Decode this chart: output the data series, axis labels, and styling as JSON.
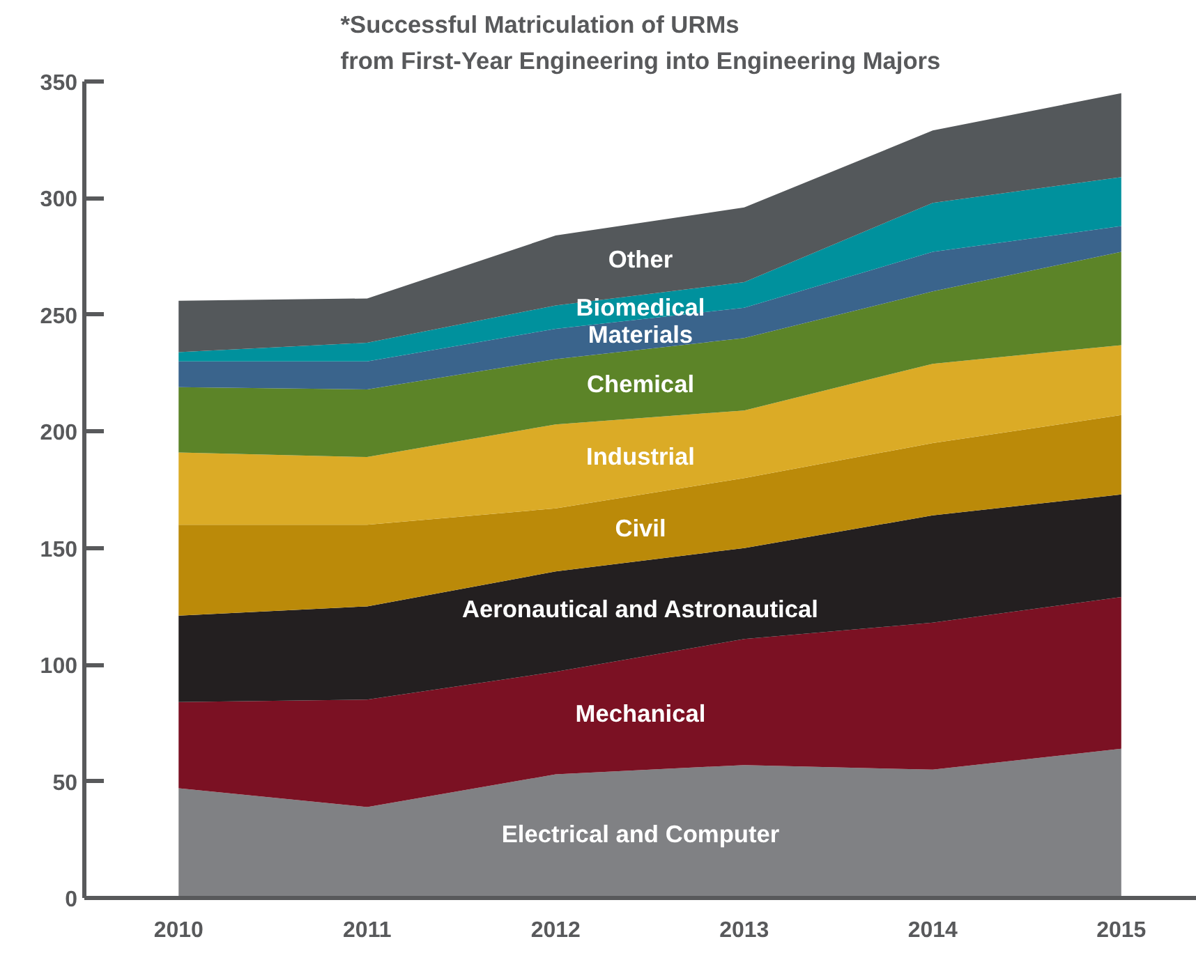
{
  "chart_data": {
    "type": "area",
    "stacked": true,
    "title": "*Successful Matriculation of URMs\nfrom First-Year Engineering into Engineering Majors",
    "x": [
      2010,
      2011,
      2012,
      2013,
      2014,
      2015
    ],
    "xlim": [
      2009.5,
      2015.4
    ],
    "xticks": [
      2010,
      2011,
      2012,
      2013,
      2014,
      2015
    ],
    "ylim": [
      0,
      350
    ],
    "yticks": [
      0,
      50,
      100,
      150,
      200,
      250,
      300,
      350
    ],
    "grid": false,
    "legend": false,
    "series": [
      {
        "name": "Electrical and Computer",
        "color": "#808184",
        "values": [
          47,
          39,
          53,
          57,
          55,
          64
        ]
      },
      {
        "name": "Mechanical",
        "color": "#7b1123",
        "values": [
          37,
          46,
          44,
          54,
          63,
          65
        ]
      },
      {
        "name": "Aeronautical and Astronautical",
        "color": "#231f20",
        "values": [
          37,
          40,
          43,
          39,
          46,
          44
        ]
      },
      {
        "name": "Civil",
        "color": "#bb8a09",
        "values": [
          39,
          35,
          27,
          30,
          31,
          34
        ]
      },
      {
        "name": "Industrial",
        "color": "#dbab26",
        "values": [
          31,
          29,
          36,
          29,
          34,
          30
        ]
      },
      {
        "name": "Chemical",
        "color": "#5c8428",
        "values": [
          28,
          29,
          28,
          31,
          31,
          40
        ]
      },
      {
        "name": "Materials",
        "color": "#3a648c",
        "values": [
          11,
          12,
          13,
          13,
          17,
          11
        ]
      },
      {
        "name": "Biomedical",
        "color": "#00919d",
        "values": [
          4,
          8,
          10,
          11,
          21,
          21
        ]
      },
      {
        "name": "Other",
        "color": "#54585b",
        "values": [
          22,
          19,
          30,
          32,
          31,
          36
        ]
      }
    ]
  }
}
